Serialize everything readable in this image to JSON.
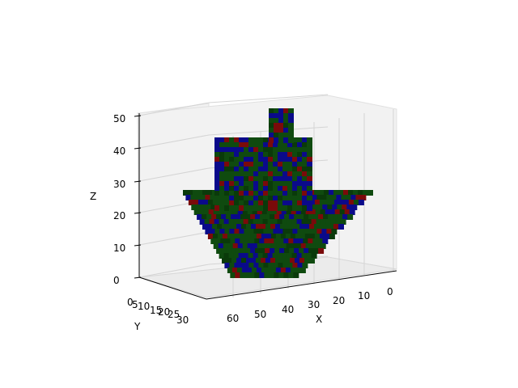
{
  "chart_data": {
    "type": "voxel-3d",
    "xlabel": "X",
    "ylabel": "Y",
    "zlabel": "Z",
    "x_ticks": [
      "0",
      "10",
      "20",
      "30",
      "40",
      "50",
      "60"
    ],
    "y_ticks": [
      "0",
      "5",
      "10",
      "15",
      "20",
      "25",
      "30"
    ],
    "z_ticks": [
      "0",
      "10",
      "20",
      "30",
      "40",
      "50"
    ],
    "xlim": [
      0,
      65
    ],
    "ylim": [
      0,
      32
    ],
    "zlim": [
      0,
      52
    ],
    "grid": true,
    "colors": {
      "voxel_main": "#0f4a0f",
      "voxel_dark": "#0a3a0a",
      "voxel_blue": "#0a0a8a",
      "voxel_red": "#7a0a0a",
      "pane": "#f2f2f2"
    }
  }
}
